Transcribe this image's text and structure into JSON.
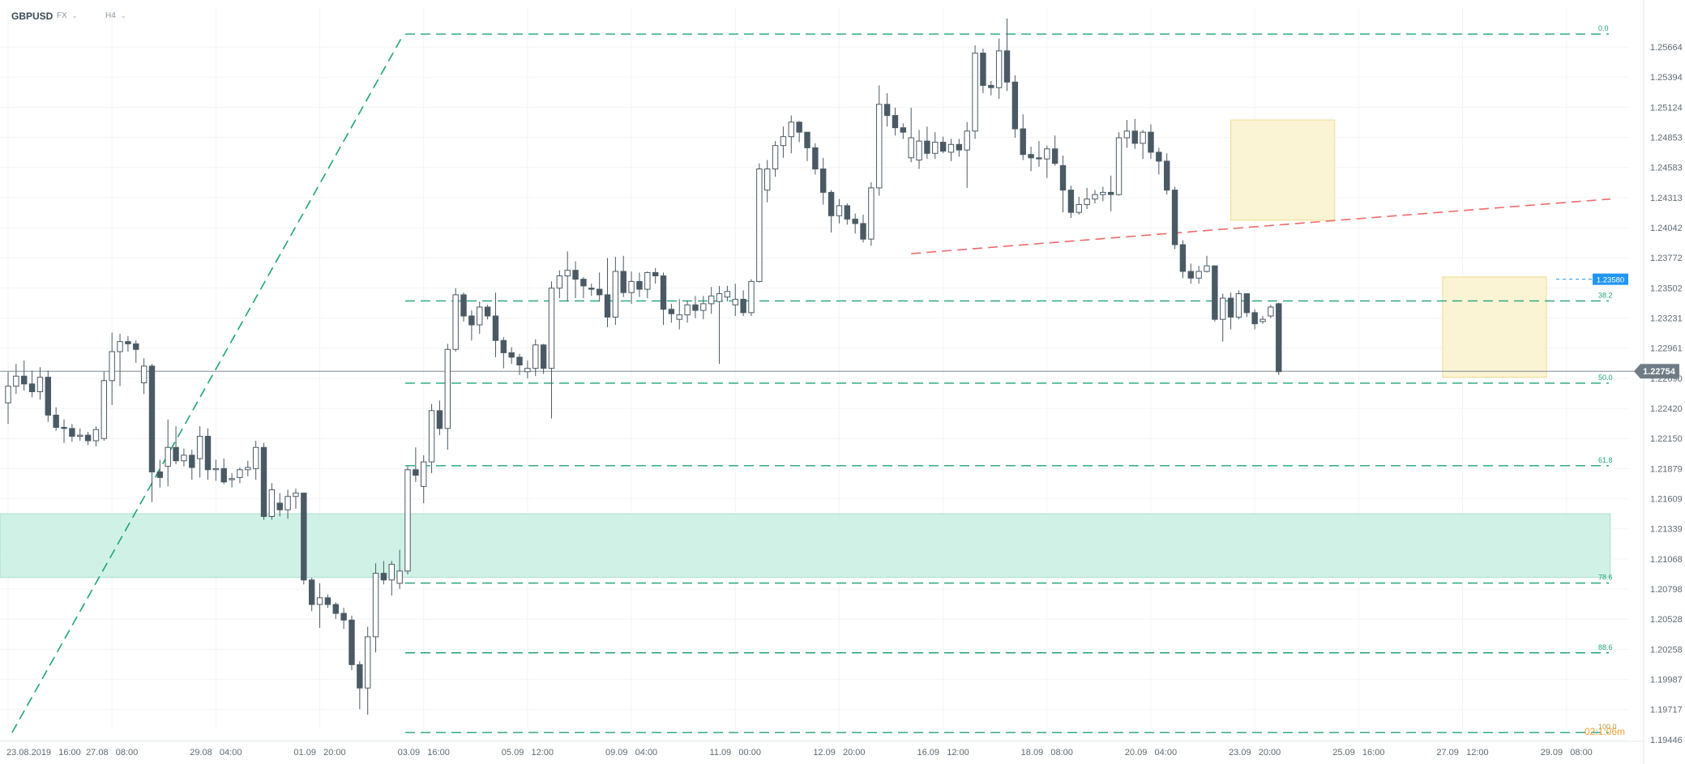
{
  "header": {
    "symbol": "GBPUSD",
    "market": "FX",
    "timeframe": "H4"
  },
  "colors": {
    "bull_body": "#ffffff",
    "bear_body": "#4a5a65",
    "wick": "#4a5a65",
    "fib_line": "#1fa37a",
    "trend_line": "#f06a6a",
    "zone_green": "#c8f0e2",
    "box_yellow": "#fbf3cf",
    "price_tag": "#6f7c85",
    "alert_tag": "#2196f3",
    "timer": "#f0a030"
  },
  "chart_data": {
    "type": "candlestick",
    "title": "",
    "symbol": "GBPUSD",
    "timeframe": "H4",
    "y_ticks": [
      "1.25664",
      "1.25394",
      "1.25124",
      "1.24853",
      "1.24583",
      "1.24313",
      "1.24042",
      "1.23772",
      "1.23502",
      "1.23231",
      "1.22961",
      "1.22690",
      "1.22420",
      "1.22150",
      "1.21879",
      "1.21609",
      "1.21339",
      "1.21068",
      "1.20798",
      "1.20528",
      "1.20258",
      "1.19987",
      "1.19717",
      "1.19446"
    ],
    "y_range": [
      1.19446,
      1.25934
    ],
    "x_ticks": [
      "23.08.2019   16:00",
      "27.08   08:00",
      "29.08   04:00",
      "01.09   20:00",
      "03.09   16:00",
      "05.09   12:00",
      "09.09   04:00",
      "11.09   00:00",
      "12.09   20:00",
      "16.09   12:00",
      "18.09   08:00",
      "20.09   04:00",
      "23.09   20:00",
      "25.09   16:00",
      "27.09   12:00",
      "29.09   08:00"
    ],
    "x_tick_index": [
      0,
      13,
      26,
      39,
      52,
      65,
      78,
      91,
      104,
      117,
      130,
      143,
      156,
      169,
      182,
      195
    ],
    "ohlc": [
      [
        1.2247,
        1.2275,
        1.2228,
        1.2262
      ],
      [
        1.2262,
        1.2282,
        1.2255,
        1.2271
      ],
      [
        1.2271,
        1.2285,
        1.2258,
        1.2264
      ],
      [
        1.2264,
        1.2276,
        1.2252,
        1.2257
      ],
      [
        1.2257,
        1.2279,
        1.225,
        1.227
      ],
      [
        1.227,
        1.2276,
        1.223,
        1.2236
      ],
      [
        1.2236,
        1.2243,
        1.2222,
        1.2225
      ],
      [
        1.2225,
        1.2232,
        1.2211,
        1.2224
      ],
      [
        1.2224,
        1.2228,
        1.2212,
        1.2217
      ],
      [
        1.2217,
        1.2224,
        1.2213,
        1.2218
      ],
      [
        1.2218,
        1.2221,
        1.2209,
        1.2213
      ],
      [
        1.2213,
        1.2226,
        1.2208,
        1.2223
      ],
      [
        1.2215,
        1.2275,
        1.2213,
        1.2267
      ],
      [
        1.2267,
        1.231,
        1.2245,
        1.2293
      ],
      [
        1.2293,
        1.2309,
        1.2262,
        1.2302
      ],
      [
        1.2302,
        1.2307,
        1.2293,
        1.23
      ],
      [
        1.23,
        1.2303,
        1.2283,
        1.2295
      ],
      [
        1.2265,
        1.2287,
        1.2255,
        1.228
      ],
      [
        1.228,
        1.2282,
        1.2158,
        1.2185
      ],
      [
        1.2185,
        1.2196,
        1.2171,
        1.218
      ],
      [
        1.219,
        1.2232,
        1.2172,
        1.2207
      ],
      [
        1.2207,
        1.2226,
        1.2192,
        1.2195
      ],
      [
        1.2195,
        1.2206,
        1.219,
        1.22
      ],
      [
        1.22,
        1.2205,
        1.2178,
        1.2189
      ],
      [
        1.2197,
        1.2226,
        1.218,
        1.2217
      ],
      [
        1.2217,
        1.2224,
        1.2178,
        1.2187
      ],
      [
        1.2187,
        1.2196,
        1.2177,
        1.2188
      ],
      [
        1.2188,
        1.2197,
        1.2174,
        1.2176
      ],
      [
        1.2178,
        1.2184,
        1.2171,
        1.2179
      ],
      [
        1.218,
        1.2189,
        1.2175,
        1.2187
      ],
      [
        1.2187,
        1.2195,
        1.2181,
        1.2189
      ],
      [
        1.2188,
        1.2213,
        1.2178,
        1.2207
      ],
      [
        1.2207,
        1.2211,
        1.2142,
        1.2145
      ],
      [
        1.2145,
        1.2175,
        1.2142,
        1.2169
      ],
      [
        1.2157,
        1.2166,
        1.2145,
        1.2151
      ],
      [
        1.2151,
        1.2169,
        1.2143,
        1.2163
      ],
      [
        1.2163,
        1.217,
        1.2152,
        1.2166
      ],
      [
        1.2166,
        1.2166,
        1.2084,
        1.2088
      ],
      [
        1.2088,
        1.209,
        1.206,
        1.2066
      ],
      [
        1.2066,
        1.2085,
        1.2045,
        1.2072
      ],
      [
        1.2072,
        1.2075,
        1.2063,
        1.2066
      ],
      [
        1.2066,
        1.2068,
        1.2053,
        1.2058
      ],
      [
        1.2058,
        1.2063,
        1.2044,
        1.2052
      ],
      [
        1.2052,
        1.2056,
        1.2007,
        1.2012
      ],
      [
        1.2012,
        1.2015,
        1.1972,
        1.1991
      ],
      [
        1.1991,
        1.2046,
        1.1967,
        1.2037
      ],
      [
        1.2037,
        1.2103,
        1.2023,
        1.2094
      ],
      [
        1.2094,
        1.2105,
        1.2084,
        1.2088
      ],
      [
        1.2088,
        1.2105,
        1.2074,
        1.2102
      ],
      [
        1.2085,
        1.2115,
        1.208,
        1.2096
      ],
      [
        1.2096,
        1.219,
        1.2093,
        1.2187
      ],
      [
        1.2187,
        1.2207,
        1.2176,
        1.2182
      ],
      [
        1.2172,
        1.22,
        1.2157,
        1.2194
      ],
      [
        1.2194,
        1.2246,
        1.2184,
        1.224
      ],
      [
        1.224,
        1.2249,
        1.2218,
        1.2224
      ],
      [
        1.2224,
        1.23,
        1.2205,
        1.2295
      ],
      [
        1.2295,
        1.235,
        1.2293,
        1.2344
      ],
      [
        1.2344,
        1.2346,
        1.232,
        1.2325
      ],
      [
        1.2325,
        1.233,
        1.2303,
        1.2317
      ],
      [
        1.2317,
        1.2338,
        1.2309,
        1.2333
      ],
      [
        1.2333,
        1.2335,
        1.2322,
        1.2325
      ],
      [
        1.2325,
        1.2346,
        1.2288,
        1.2303
      ],
      [
        1.2303,
        1.2306,
        1.2278,
        1.2292
      ],
      [
        1.2292,
        1.2297,
        1.2282,
        1.2288
      ],
      [
        1.2288,
        1.2291,
        1.2272,
        1.2281
      ],
      [
        1.2275,
        1.2285,
        1.2269,
        1.2278
      ],
      [
        1.2278,
        1.2304,
        1.2271,
        1.2299
      ],
      [
        1.2299,
        1.23,
        1.2273,
        1.2278
      ],
      [
        1.2278,
        1.2356,
        1.2233,
        1.235
      ],
      [
        1.235,
        1.2366,
        1.2341,
        1.2361
      ],
      [
        1.2361,
        1.2383,
        1.2338,
        1.2366
      ],
      [
        1.2366,
        1.2374,
        1.2341,
        1.2358
      ],
      [
        1.2358,
        1.236,
        1.2341,
        1.2352
      ],
      [
        1.235,
        1.2354,
        1.2343,
        1.2349
      ],
      [
        1.2349,
        1.2364,
        1.2338,
        1.2344
      ],
      [
        1.2344,
        1.2377,
        1.2315,
        1.2324
      ],
      [
        1.2324,
        1.2378,
        1.2317,
        1.2365
      ],
      [
        1.2365,
        1.2379,
        1.2342,
        1.2346
      ],
      [
        1.2346,
        1.2365,
        1.2336,
        1.2356
      ],
      [
        1.2356,
        1.2364,
        1.2342,
        1.2349
      ],
      [
        1.2349,
        1.2365,
        1.2341,
        1.2364
      ],
      [
        1.2364,
        1.2368,
        1.2354,
        1.2361
      ],
      [
        1.2361,
        1.2364,
        1.2317,
        1.2331
      ],
      [
        1.2331,
        1.2336,
        1.2319,
        1.2327
      ],
      [
        1.2322,
        1.234,
        1.2313,
        1.2326
      ],
      [
        1.2326,
        1.2339,
        1.2319,
        1.2335
      ],
      [
        1.2335,
        1.2343,
        1.2323,
        1.233
      ],
      [
        1.233,
        1.2343,
        1.2322,
        1.2336
      ],
      [
        1.2336,
        1.2351,
        1.2327,
        1.2343
      ],
      [
        1.2338,
        1.2352,
        1.2282,
        1.2345
      ],
      [
        1.2342,
        1.2352,
        1.2338,
        1.2347
      ],
      [
        1.2335,
        1.2354,
        1.2325,
        1.234
      ],
      [
        1.234,
        1.2348,
        1.2325,
        1.2328
      ],
      [
        1.2328,
        1.2358,
        1.2325,
        1.2356
      ],
      [
        1.2356,
        1.2462,
        1.2355,
        1.2457
      ],
      [
        1.2438,
        1.2465,
        1.2427,
        1.2457
      ],
      [
        1.2457,
        1.2482,
        1.245,
        1.2478
      ],
      [
        1.2478,
        1.2495,
        1.2467,
        1.2486
      ],
      [
        1.2486,
        1.2505,
        1.2471,
        1.2499
      ],
      [
        1.2499,
        1.25,
        1.2481,
        1.249
      ],
      [
        1.249,
        1.249,
        1.2464,
        1.2476
      ],
      [
        1.2476,
        1.248,
        1.2452,
        1.2457
      ],
      [
        1.2457,
        1.2467,
        1.2425,
        1.2436
      ],
      [
        1.2436,
        1.2438,
        1.24,
        1.2415
      ],
      [
        1.2415,
        1.243,
        1.2408,
        1.2424
      ],
      [
        1.2424,
        1.2426,
        1.2407,
        1.2412
      ],
      [
        1.2412,
        1.2417,
        1.2399,
        1.2408
      ],
      [
        1.2408,
        1.2416,
        1.2391,
        1.2394
      ],
      [
        1.2394,
        1.2445,
        1.2388,
        1.244
      ],
      [
        1.244,
        1.2532,
        1.2433,
        1.2515
      ],
      [
        1.2515,
        1.2525,
        1.2495,
        1.2505
      ],
      [
        1.2505,
        1.2512,
        1.2487,
        1.2494
      ],
      [
        1.2494,
        1.2498,
        1.2484,
        1.249
      ],
      [
        1.2467,
        1.2512,
        1.2463,
        1.2485
      ],
      [
        1.2465,
        1.2492,
        1.2457,
        1.2482
      ],
      [
        1.2482,
        1.2495,
        1.2466,
        1.2471
      ],
      [
        1.2471,
        1.249,
        1.2466,
        1.2481
      ],
      [
        1.2481,
        1.2486,
        1.2471,
        1.2473
      ],
      [
        1.2472,
        1.2484,
        1.2464,
        1.2479
      ],
      [
        1.2479,
        1.2484,
        1.2468,
        1.2474
      ],
      [
        1.2474,
        1.2499,
        1.244,
        1.2491
      ],
      [
        1.2491,
        1.2568,
        1.2484,
        1.2561
      ],
      [
        1.2561,
        1.2565,
        1.2525,
        1.2532
      ],
      [
        1.2532,
        1.2536,
        1.2523,
        1.253
      ],
      [
        1.253,
        1.2574,
        1.252,
        1.2563
      ],
      [
        1.2563,
        1.2592,
        1.2527,
        1.2535
      ],
      [
        1.2535,
        1.2541,
        1.2485,
        1.2493
      ],
      [
        1.2493,
        1.2506,
        1.2465,
        1.247
      ],
      [
        1.247,
        1.2477,
        1.2455,
        1.2467
      ],
      [
        1.2467,
        1.2482,
        1.2459,
        1.2466
      ],
      [
        1.2466,
        1.2478,
        1.2449,
        1.2475
      ],
      [
        1.2475,
        1.2487,
        1.246,
        1.2462
      ],
      [
        1.246,
        1.2469,
        1.2418,
        1.2438
      ],
      [
        1.2438,
        1.2442,
        1.2413,
        1.2418
      ],
      [
        1.2418,
        1.2432,
        1.2416,
        1.2425
      ],
      [
        1.2425,
        1.244,
        1.2421,
        1.243
      ],
      [
        1.243,
        1.2438,
        1.2426,
        1.2434
      ],
      [
        1.2434,
        1.2441,
        1.2428,
        1.2436
      ],
      [
        1.2436,
        1.2451,
        1.2419,
        1.2434
      ],
      [
        1.2434,
        1.249,
        1.2433,
        1.2485
      ],
      [
        1.2485,
        1.2501,
        1.2476,
        1.2491
      ],
      [
        1.2491,
        1.2502,
        1.2475,
        1.248
      ],
      [
        1.248,
        1.2492,
        1.2466,
        1.249
      ],
      [
        1.249,
        1.2497,
        1.2466,
        1.2472
      ],
      [
        1.2472,
        1.2476,
        1.2452,
        1.2464
      ],
      [
        1.2464,
        1.2471,
        1.2434,
        1.2438
      ],
      [
        1.2438,
        1.2441,
        1.2385,
        1.2389
      ],
      [
        1.2389,
        1.2393,
        1.2359,
        1.2365
      ],
      [
        1.2365,
        1.2372,
        1.2354,
        1.2359
      ],
      [
        1.2359,
        1.237,
        1.2354,
        1.2365
      ],
      [
        1.2365,
        1.2379,
        1.2364,
        1.237
      ],
      [
        1.237,
        1.237,
        1.232,
        1.2322
      ],
      [
        1.2322,
        1.2345,
        1.2302,
        1.2341
      ],
      [
        1.2341,
        1.2346,
        1.2313,
        1.2324
      ],
      [
        1.2324,
        1.2348,
        1.2322,
        1.2345
      ],
      [
        1.2345,
        1.2345,
        1.2324,
        1.2328
      ],
      [
        1.2328,
        1.2331,
        1.2313,
        1.2318
      ],
      [
        1.232,
        1.2325,
        1.2318,
        1.2322
      ],
      [
        1.2325,
        1.2335,
        1.2323,
        1.2333
      ],
      [
        1.2336,
        1.2337,
        1.2272,
        1.2275
      ]
    ],
    "fibonacci": {
      "levels": [
        {
          "label": "0.0",
          "price": 1.25781
        },
        {
          "label": "38.2",
          "price": 1.23385
        },
        {
          "label": "50.0",
          "price": 1.22647
        },
        {
          "label": "61.8",
          "price": 1.21906
        },
        {
          "label": "78.6",
          "price": 1.20852
        },
        {
          "label": "88.6",
          "price": 1.20226
        },
        {
          "label": "100.0",
          "price": 1.1951
        }
      ]
    },
    "trendlines": [
      {
        "style": "dashed",
        "color": "fib",
        "from": [
          0.5,
          1.1951
        ],
        "to": [
          49.5,
          1.25781
        ]
      },
      {
        "style": "dashed",
        "color": "red",
        "from": [
          113,
          1.2381
        ],
        "to": [
          200.5,
          1.243
        ]
      }
    ],
    "zones": [
      {
        "kind": "support",
        "price_top": 1.21475,
        "price_bottom": 1.20902,
        "x_from": -50,
        "x_to": 200.5
      },
      {
        "kind": "box",
        "price_top": 1.2501,
        "price_bottom": 1.2411,
        "x_from": 153,
        "x_to": 166
      },
      {
        "kind": "box",
        "price_top": 1.236,
        "price_bottom": 1.227,
        "x_from": 179.5,
        "x_to": 192.5
      }
    ],
    "current_price": "1.22754",
    "alert_price": "1.23580",
    "countdown": "02:1:06m"
  }
}
